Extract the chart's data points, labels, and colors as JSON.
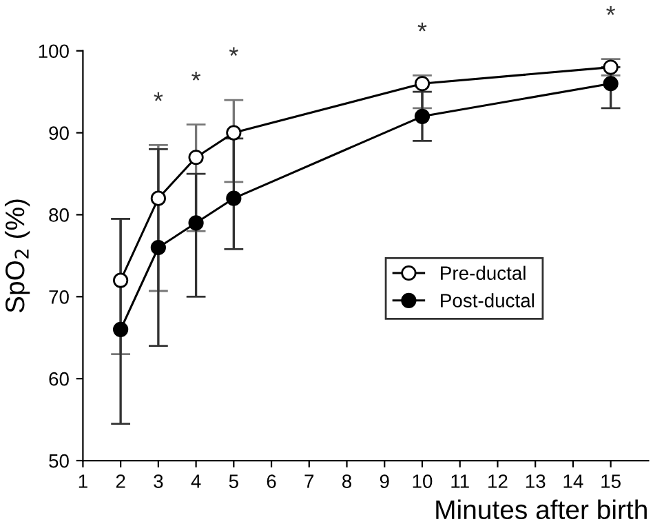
{
  "chart_data": {
    "type": "line",
    "xlabel": "Minutes after birth",
    "ylabel": "SpO$_{2}$ (%)",
    "x": [
      2,
      3,
      4,
      5,
      10,
      15
    ],
    "series": [
      {
        "name": "Pre-ductal",
        "color": "#000000",
        "marker": "circle",
        "values": [
          72,
          82,
          87,
          90,
          96,
          98
        ],
        "errors": [
          [
            63,
            79.5
          ],
          [
            70.7,
            88.5
          ],
          [
            78,
            91
          ],
          [
            84,
            94
          ],
          [
            93,
            97
          ],
          [
            97,
            99
          ]
        ]
      },
      {
        "name": "Post-ductal",
        "color": "#000000",
        "marker": "circle",
        "values": [
          66,
          76,
          79,
          82,
          92,
          96
        ],
        "errors": [
          [
            54.5,
            79.5
          ],
          [
            64,
            88
          ],
          [
            70,
            85
          ],
          [
            75.8,
            89.3
          ],
          [
            89,
            95
          ],
          [
            93,
            98
          ]
        ]
      }
    ],
    "xlim": [
      1,
      16
    ],
    "xticks": [
      1,
      2,
      3,
      4,
      5,
      6,
      7,
      8,
      9,
      10,
      11,
      12,
      13,
      14,
      15
    ],
    "ylim": [
      50,
      100
    ],
    "yticks": [
      50,
      60,
      70,
      80,
      90,
      100
    ],
    "grid": false,
    "legend": "right",
    "line_style": "solid",
    "annotations": [
      "*",
      "*",
      "*",
      "*",
      "*"
    ]
  }
}
